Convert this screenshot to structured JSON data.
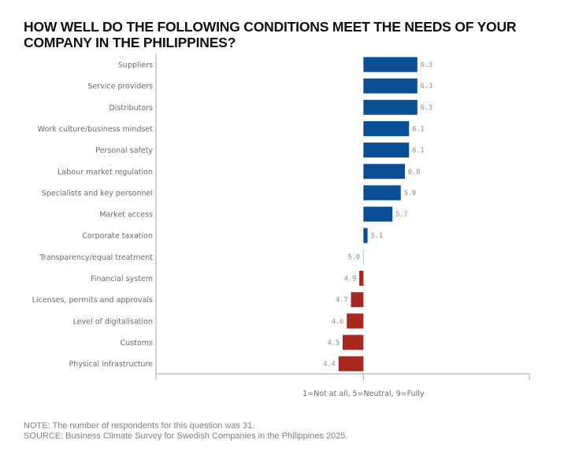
{
  "chart_data": {
    "type": "bar",
    "orientation": "horizontal",
    "title": "HOW WELL DO THE FOLLOWING CONDITIONS MEET THE NEEDS OF YOUR COMPANY IN THE PHILIPPINES?",
    "xlabel": "1=Not at all, 5=Neutral, 9=Fully",
    "ylabel": "",
    "baseline": 5,
    "xlim": [
      0,
      9
    ],
    "xticks": [
      0,
      5,
      9
    ],
    "grid": false,
    "legend": "none",
    "colors": {
      "above": "#0a4f96",
      "below": "#a8281f",
      "neutral": "#9ec3ea"
    },
    "categories": [
      "Suppliers",
      "Service providers",
      "Distributors",
      "Work culture/business mindset",
      "Personal safety",
      "Labour market regulation",
      "Specialists and key personnel",
      "Market access",
      "Corporate taxation",
      "Transparency/equal treatment",
      "Financial system",
      "Licenses, permits and approvals",
      "Level of digitalisation",
      "Customs",
      "Physical infrastructure"
    ],
    "values": [
      6.3,
      6.3,
      6.3,
      6.1,
      6.1,
      6.0,
      5.9,
      5.7,
      5.1,
      5.0,
      4.9,
      4.7,
      4.6,
      4.5,
      4.4
    ],
    "value_labels": [
      "6.3",
      "6.3",
      "6.3",
      "6.1",
      "6.1",
      "6.0",
      "5.9",
      "5.7",
      "5.1",
      "5.0",
      "4.9",
      "4.7",
      "4.6",
      "4.5",
      "4.4"
    ]
  },
  "footer": {
    "note": "NOTE: The number of respondents for this question was 31.",
    "source": "SOURCE: Business Climate Survey for Swedish Companies in the Philippines 2025."
  }
}
